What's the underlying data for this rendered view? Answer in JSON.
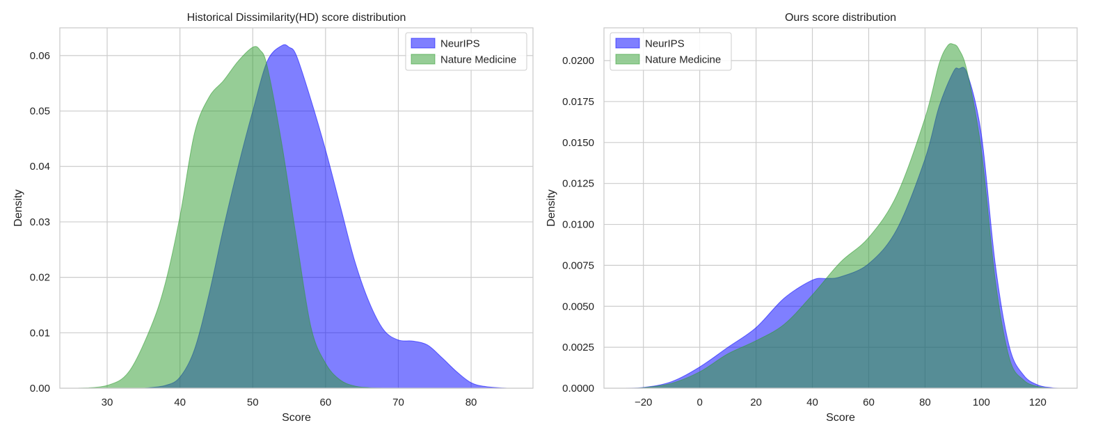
{
  "chart_data": [
    {
      "type": "area",
      "title": "Historical Dissimilarity(HD) score distribution",
      "xlabel": "Score",
      "ylabel": "Density",
      "xlim": [
        23.5,
        88.5
      ],
      "ylim": [
        0,
        0.065
      ],
      "xticks": [
        30,
        40,
        50,
        60,
        70,
        80
      ],
      "xtick_labels": [
        "30",
        "40",
        "50",
        "60",
        "70",
        "80"
      ],
      "yticks": [
        0,
        0.01,
        0.02,
        0.03,
        0.04,
        0.05,
        0.06
      ],
      "ytick_labels": [
        "0.00",
        "0.01",
        "0.02",
        "0.03",
        "0.04",
        "0.05",
        "0.06"
      ],
      "grid": true,
      "legend_position": "top-right",
      "series": [
        {
          "name": "NeurIPS",
          "color": "#0000ff",
          "x": [
            35,
            38,
            40,
            42,
            44,
            46,
            48,
            50,
            52,
            54,
            55,
            56,
            58,
            60,
            62,
            64,
            66,
            68,
            70,
            72,
            74,
            76,
            78,
            80,
            82,
            85
          ],
          "y": [
            0,
            0.0005,
            0.002,
            0.007,
            0.017,
            0.029,
            0.04,
            0.05,
            0.059,
            0.0618,
            0.0615,
            0.06,
            0.052,
            0.043,
            0.033,
            0.023,
            0.0155,
            0.0105,
            0.0087,
            0.0085,
            0.0078,
            0.0055,
            0.003,
            0.001,
            0.0003,
            0
          ]
        },
        {
          "name": "Nature Medicine",
          "color": "#2e9b2e",
          "x": [
            26,
            30,
            33,
            36,
            38,
            40,
            42,
            44,
            46,
            48,
            50,
            51,
            52,
            54,
            56,
            58,
            60,
            62,
            64,
            66,
            68
          ],
          "y": [
            0,
            0.0005,
            0.003,
            0.011,
            0.019,
            0.031,
            0.046,
            0.0525,
            0.0555,
            0.059,
            0.0615,
            0.061,
            0.058,
            0.044,
            0.027,
            0.011,
            0.0045,
            0.0015,
            0.0004,
            0.0001,
            0
          ]
        }
      ]
    },
    {
      "type": "area",
      "title": "Ours score distribution",
      "xlabel": "Score",
      "ylabel": "Density",
      "xlim": [
        -34,
        134
      ],
      "ylim": [
        0,
        0.022
      ],
      "xticks": [
        -20,
        0,
        20,
        40,
        60,
        80,
        100,
        120
      ],
      "xtick_labels": [
        "−20",
        "0",
        "20",
        "40",
        "60",
        "80",
        "100",
        "120"
      ],
      "yticks": [
        0,
        0.0025,
        0.005,
        0.0075,
        0.01,
        0.0125,
        0.015,
        0.0175,
        0.02
      ],
      "ytick_labels": [
        "0.0000",
        "0.0025",
        "0.0050",
        "0.0075",
        "0.0100",
        "0.0125",
        "0.0150",
        "0.0175",
        "0.0200"
      ],
      "grid": true,
      "legend_position": "top-left",
      "series": [
        {
          "name": "NeurIPS",
          "color": "#0000ff",
          "x": [
            -30,
            -20,
            -10,
            0,
            10,
            20,
            30,
            40,
            45,
            50,
            60,
            70,
            80,
            85,
            90,
            92,
            95,
            100,
            105,
            110,
            115,
            120,
            125,
            128
          ],
          "y": [
            0,
            5e-05,
            0.0004,
            0.0013,
            0.0025,
            0.0037,
            0.0055,
            0.0066,
            0.0067,
            0.0068,
            0.0076,
            0.0097,
            0.014,
            0.0172,
            0.0193,
            0.0195,
            0.0192,
            0.0155,
            0.0075,
            0.0025,
            0.0008,
            0.0002,
            3e-05,
            0
          ]
        },
        {
          "name": "Nature Medicine",
          "color": "#2e9b2e",
          "x": [
            -25,
            -20,
            -10,
            0,
            10,
            20,
            30,
            40,
            50,
            60,
            70,
            80,
            85,
            88,
            90,
            92,
            95,
            100,
            105,
            110,
            115,
            120,
            125
          ],
          "y": [
            0,
            3e-05,
            0.0003,
            0.001,
            0.0021,
            0.0029,
            0.0039,
            0.0057,
            0.0077,
            0.0092,
            0.0118,
            0.0165,
            0.0198,
            0.0209,
            0.021,
            0.0207,
            0.0193,
            0.0145,
            0.0065,
            0.0018,
            0.0005,
            0.0001,
            0
          ]
        }
      ]
    }
  ]
}
